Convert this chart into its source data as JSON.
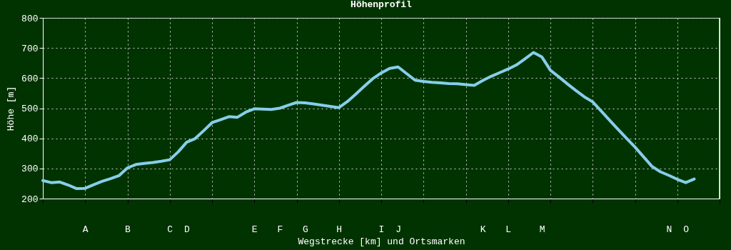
{
  "chart_data": {
    "type": "line",
    "title": "Höhenprofil",
    "xlabel": "Wegstrecke [km] und Ortsmarken",
    "ylabel": "Höhe [m]",
    "categories": [
      null,
      null,
      null,
      null,
      null,
      "A",
      null,
      null,
      null,
      null,
      "B",
      null,
      null,
      null,
      null,
      "C",
      null,
      "D",
      null,
      null,
      null,
      null,
      null,
      null,
      null,
      "E",
      null,
      null,
      "F",
      null,
      null,
      "G",
      null,
      null,
      null,
      "H",
      null,
      null,
      null,
      null,
      "I",
      null,
      "J",
      null,
      null,
      null,
      null,
      null,
      null,
      null,
      null,
      null,
      "K",
      null,
      null,
      "L",
      null,
      null,
      null,
      "M",
      null,
      null,
      null,
      null,
      null,
      null,
      null,
      null,
      null,
      null,
      null,
      null,
      null,
      null,
      "N",
      null,
      "O",
      null,
      null,
      null,
      null
    ],
    "series": [
      {
        "color": "#87ceeb",
        "values": [
          260,
          253,
          255,
          245,
          233,
          234,
          246,
          257,
          266,
          276,
          302,
          313,
          317,
          320,
          324,
          329,
          355,
          387,
          399,
          425,
          452,
          462,
          472,
          470,
          487,
          498,
          497,
          496,
          500,
          510,
          519,
          518,
          514,
          510,
          506,
          502,
          522,
          547,
          573,
          598,
          617,
          632,
          637,
          615,
          593,
          589,
          586,
          584,
          582,
          581,
          578,
          576,
          592,
          606,
          618,
          630,
          644,
          664,
          685,
          670,
          626,
          604,
          581,
          559,
          538,
          521,
          491,
          460,
          430,
          400,
          371,
          339,
          307,
          289,
          277,
          264,
          253,
          265,
          null,
          null,
          null
        ]
      }
    ],
    "ylim": [
      200,
      800
    ],
    "yticks": [
      200,
      300,
      400,
      500,
      600,
      700,
      800
    ],
    "grid": true
  }
}
